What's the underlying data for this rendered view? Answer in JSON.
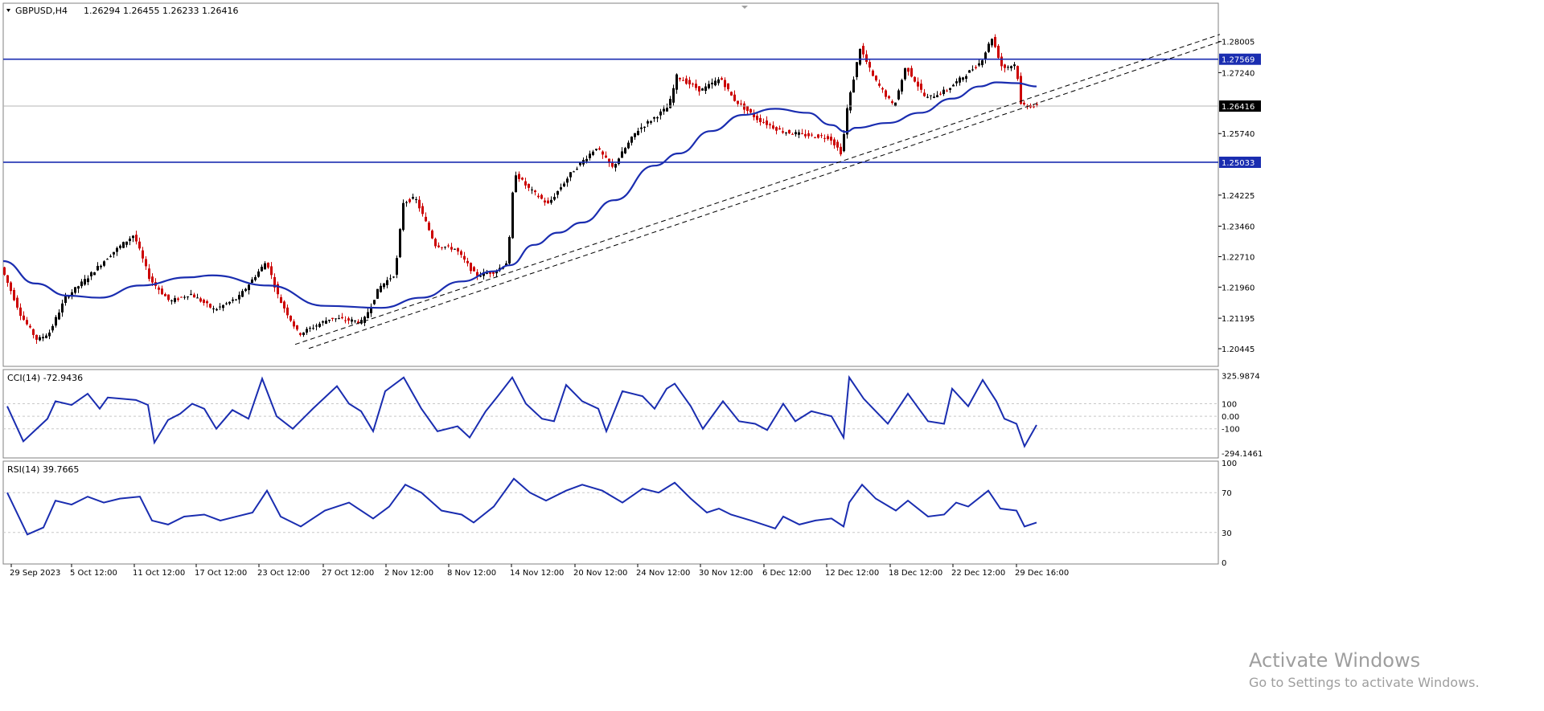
{
  "header": {
    "symbol": "GBPUSD,H4",
    "ohlc": "1.26294 1.26455 1.26233 1.26416"
  },
  "panes": {
    "cci_label": "CCI(14) -72.9436",
    "rsi_label": "RSI(14) 39.7665"
  },
  "watermark": {
    "title": "Activate Windows",
    "subtitle": "Go to Settings to activate Windows."
  },
  "colors": {
    "candle_up": "#000000",
    "candle_down": "#cc0000",
    "indicator": "#1a2db0",
    "level_line": "#1a2db0",
    "price_tag_bg": "#000000",
    "level_tag_bg": "#1a2db0",
    "grid": "#c8c8c8"
  },
  "chart_data": [
    {
      "type": "candlestick",
      "pane": "price",
      "y_axis_ticks": [
        "1.28005",
        "1.27240",
        "1.25740",
        "1.24225",
        "1.23460",
        "1.22710",
        "1.21960",
        "1.21195",
        "1.20445"
      ],
      "ylim": [
        1.2005,
        1.2875
      ],
      "levels": [
        {
          "label": "1.27569",
          "value": 1.27569
        },
        {
          "label": "1.25033",
          "value": 1.25033
        }
      ],
      "current_price": {
        "label": "1.26416",
        "value": 1.26416
      },
      "trendlines": [
        {
          "style": "dashed",
          "from": {
            "bar": 363,
            "value": 1.2055
          },
          "to": {
            "bar": 1513,
            "value": 1.2818
          }
        },
        {
          "style": "dashed",
          "from": {
            "bar": 380,
            "value": 1.2045
          },
          "to": {
            "bar": 1513,
            "value": 1.28
          }
        }
      ],
      "price_path": [
        [
          0,
          1.2245
        ],
        [
          25,
          1.2125
        ],
        [
          45,
          1.2065
        ],
        [
          60,
          1.2085
        ],
        [
          80,
          1.217
        ],
        [
          105,
          1.2215
        ],
        [
          135,
          1.2275
        ],
        [
          165,
          1.2325
        ],
        [
          185,
          1.2215
        ],
        [
          210,
          1.216
        ],
        [
          235,
          1.218
        ],
        [
          265,
          1.214
        ],
        [
          295,
          1.217
        ],
        [
          330,
          1.226
        ],
        [
          345,
          1.217
        ],
        [
          370,
          1.208
        ],
        [
          410,
          1.212
        ],
        [
          450,
          1.211
        ],
        [
          470,
          1.2195
        ],
        [
          490,
          1.223
        ],
        [
          500,
          1.2405
        ],
        [
          515,
          1.2415
        ],
        [
          540,
          1.23
        ],
        [
          565,
          1.229
        ],
        [
          590,
          1.2225
        ],
        [
          615,
          1.2235
        ],
        [
          630,
          1.226
        ],
        [
          638,
          1.248
        ],
        [
          655,
          1.244
        ],
        [
          680,
          1.24
        ],
        [
          710,
          1.248
        ],
        [
          740,
          1.254
        ],
        [
          760,
          1.249
        ],
        [
          790,
          1.258
        ],
        [
          830,
          1.264
        ],
        [
          840,
          1.2715
        ],
        [
          870,
          1.268
        ],
        [
          895,
          1.271
        ],
        [
          910,
          1.266
        ],
        [
          940,
          1.261
        ],
        [
          970,
          1.258
        ],
        [
          1000,
          1.257
        ],
        [
          1030,
          1.2565
        ],
        [
          1045,
          1.2525
        ],
        [
          1052,
          1.2635
        ],
        [
          1068,
          1.2785
        ],
        [
          1085,
          1.271
        ],
        [
          1110,
          1.264
        ],
        [
          1125,
          1.274
        ],
        [
          1150,
          1.266
        ],
        [
          1175,
          1.268
        ],
        [
          1200,
          1.272
        ],
        [
          1218,
          1.275
        ],
        [
          1232,
          1.281
        ],
        [
          1245,
          1.2735
        ],
        [
          1262,
          1.2745
        ],
        [
          1268,
          1.2645
        ],
        [
          1285,
          1.2641
        ]
      ],
      "moving_average": [
        [
          0,
          1.226
        ],
        [
          40,
          1.2205
        ],
        [
          80,
          1.2175
        ],
        [
          120,
          1.217
        ],
        [
          170,
          1.22
        ],
        [
          230,
          1.222
        ],
        [
          260,
          1.2225
        ],
        [
          330,
          1.22
        ],
        [
          400,
          1.215
        ],
        [
          470,
          1.2145
        ],
        [
          520,
          1.217
        ],
        [
          570,
          1.221
        ],
        [
          610,
          1.2235
        ],
        [
          630,
          1.225
        ],
        [
          660,
          1.23
        ],
        [
          690,
          1.233
        ],
        [
          720,
          1.2355
        ],
        [
          760,
          1.241
        ],
        [
          810,
          1.2495
        ],
        [
          840,
          1.2525
        ],
        [
          880,
          1.258
        ],
        [
          920,
          1.262
        ],
        [
          960,
          1.2635
        ],
        [
          1000,
          1.2625
        ],
        [
          1030,
          1.2595
        ],
        [
          1048,
          1.2578
        ],
        [
          1060,
          1.2588
        ],
        [
          1100,
          1.26
        ],
        [
          1140,
          1.2625
        ],
        [
          1180,
          1.266
        ],
        [
          1215,
          1.269
        ],
        [
          1235,
          1.27
        ],
        [
          1260,
          1.2698
        ],
        [
          1285,
          1.269
        ]
      ]
    },
    {
      "type": "line",
      "pane": "cci",
      "name": "CCI(14)",
      "y_axis_ticks": [
        "325.9874",
        "100",
        "0.00",
        "-100",
        "-294.1461"
      ],
      "ylim": [
        -320,
        360
      ],
      "levels": [
        100,
        0,
        -100
      ],
      "series": [
        [
          5,
          80
        ],
        [
          25,
          -200
        ],
        [
          40,
          -110
        ],
        [
          55,
          -20
        ],
        [
          65,
          120
        ],
        [
          85,
          90
        ],
        [
          105,
          180
        ],
        [
          120,
          60
        ],
        [
          130,
          150
        ],
        [
          165,
          130
        ],
        [
          180,
          90
        ],
        [
          188,
          -210
        ],
        [
          205,
          -30
        ],
        [
          220,
          20
        ],
        [
          235,
          100
        ],
        [
          250,
          60
        ],
        [
          265,
          -100
        ],
        [
          285,
          50
        ],
        [
          305,
          -20
        ],
        [
          322,
          300
        ],
        [
          340,
          0
        ],
        [
          360,
          -100
        ],
        [
          385,
          60
        ],
        [
          415,
          240
        ],
        [
          430,
          100
        ],
        [
          445,
          40
        ],
        [
          460,
          -120
        ],
        [
          475,
          200
        ],
        [
          498,
          310
        ],
        [
          520,
          60
        ],
        [
          540,
          -120
        ],
        [
          565,
          -80
        ],
        [
          580,
          -170
        ],
        [
          600,
          40
        ],
        [
          615,
          160
        ],
        [
          633,
          310
        ],
        [
          650,
          100
        ],
        [
          670,
          -20
        ],
        [
          685,
          -40
        ],
        [
          700,
          250
        ],
        [
          720,
          120
        ],
        [
          740,
          60
        ],
        [
          750,
          -120
        ],
        [
          770,
          200
        ],
        [
          795,
          160
        ],
        [
          810,
          60
        ],
        [
          825,
          220
        ],
        [
          835,
          260
        ],
        [
          855,
          80
        ],
        [
          870,
          -100
        ],
        [
          895,
          120
        ],
        [
          915,
          -40
        ],
        [
          935,
          -60
        ],
        [
          950,
          -110
        ],
        [
          970,
          100
        ],
        [
          985,
          -40
        ],
        [
          1005,
          40
        ],
        [
          1030,
          0
        ],
        [
          1045,
          -170
        ],
        [
          1052,
          310
        ],
        [
          1070,
          140
        ],
        [
          1100,
          -60
        ],
        [
          1125,
          180
        ],
        [
          1150,
          -40
        ],
        [
          1170,
          -60
        ],
        [
          1180,
          220
        ],
        [
          1200,
          80
        ],
        [
          1218,
          290
        ],
        [
          1235,
          120
        ],
        [
          1245,
          -20
        ],
        [
          1260,
          -60
        ],
        [
          1270,
          -240
        ],
        [
          1285,
          -70
        ]
      ]
    },
    {
      "type": "line",
      "pane": "rsi",
      "name": "RSI(14)",
      "y_axis_ticks": [
        "100",
        "70",
        "30",
        "0"
      ],
      "ylim": [
        0,
        100
      ],
      "levels": [
        70,
        30
      ],
      "series": [
        [
          5,
          70
        ],
        [
          30,
          28
        ],
        [
          50,
          35
        ],
        [
          65,
          62
        ],
        [
          85,
          58
        ],
        [
          105,
          66
        ],
        [
          125,
          60
        ],
        [
          145,
          64
        ],
        [
          170,
          66
        ],
        [
          185,
          42
        ],
        [
          205,
          38
        ],
        [
          225,
          46
        ],
        [
          250,
          48
        ],
        [
          270,
          42
        ],
        [
          290,
          46
        ],
        [
          310,
          50
        ],
        [
          328,
          72
        ],
        [
          345,
          46
        ],
        [
          370,
          36
        ],
        [
          400,
          52
        ],
        [
          430,
          60
        ],
        [
          460,
          44
        ],
        [
          480,
          56
        ],
        [
          500,
          78
        ],
        [
          520,
          70
        ],
        [
          545,
          52
        ],
        [
          570,
          48
        ],
        [
          585,
          40
        ],
        [
          610,
          56
        ],
        [
          635,
          84
        ],
        [
          655,
          70
        ],
        [
          675,
          62
        ],
        [
          700,
          72
        ],
        [
          720,
          78
        ],
        [
          745,
          72
        ],
        [
          770,
          60
        ],
        [
          795,
          74
        ],
        [
          815,
          70
        ],
        [
          835,
          80
        ],
        [
          855,
          64
        ],
        [
          875,
          50
        ],
        [
          890,
          54
        ],
        [
          905,
          48
        ],
        [
          930,
          42
        ],
        [
          960,
          34
        ],
        [
          970,
          46
        ],
        [
          990,
          38
        ],
        [
          1010,
          42
        ],
        [
          1030,
          44
        ],
        [
          1045,
          36
        ],
        [
          1052,
          60
        ],
        [
          1068,
          78
        ],
        [
          1085,
          64
        ],
        [
          1110,
          52
        ],
        [
          1125,
          62
        ],
        [
          1150,
          46
        ],
        [
          1170,
          48
        ],
        [
          1185,
          60
        ],
        [
          1200,
          56
        ],
        [
          1225,
          72
        ],
        [
          1240,
          54
        ],
        [
          1260,
          52
        ],
        [
          1270,
          36
        ],
        [
          1285,
          40
        ]
      ]
    }
  ],
  "x_axis": {
    "labels": [
      {
        "bar": 10,
        "label": "29 Sep 2023"
      },
      {
        "bar": 85,
        "label": "5 Oct 12:00"
      },
      {
        "bar": 163,
        "label": "11 Oct 12:00"
      },
      {
        "bar": 240,
        "label": "17 Oct 12:00"
      },
      {
        "bar": 318,
        "label": "23 Oct 12:00"
      },
      {
        "bar": 398,
        "label": "27 Oct 12:00"
      },
      {
        "bar": 476,
        "label": "2 Nov 12:00"
      },
      {
        "bar": 554,
        "label": "8 Nov 12:00"
      },
      {
        "bar": 632,
        "label": "14 Nov 12:00"
      },
      {
        "bar": 711,
        "label": "20 Nov 12:00"
      },
      {
        "bar": 789,
        "label": "24 Nov 12:00"
      },
      {
        "bar": 867,
        "label": "30 Nov 12:00"
      },
      {
        "bar": 946,
        "label": "6 Dec 12:00"
      },
      {
        "bar": 1024,
        "label": "12 Dec 12:00"
      },
      {
        "bar": 1103,
        "label": "18 Dec 12:00"
      },
      {
        "bar": 1181,
        "label": "22 Dec 12:00"
      },
      {
        "bar": 1260,
        "label": "29 Dec 16:00"
      }
    ]
  }
}
